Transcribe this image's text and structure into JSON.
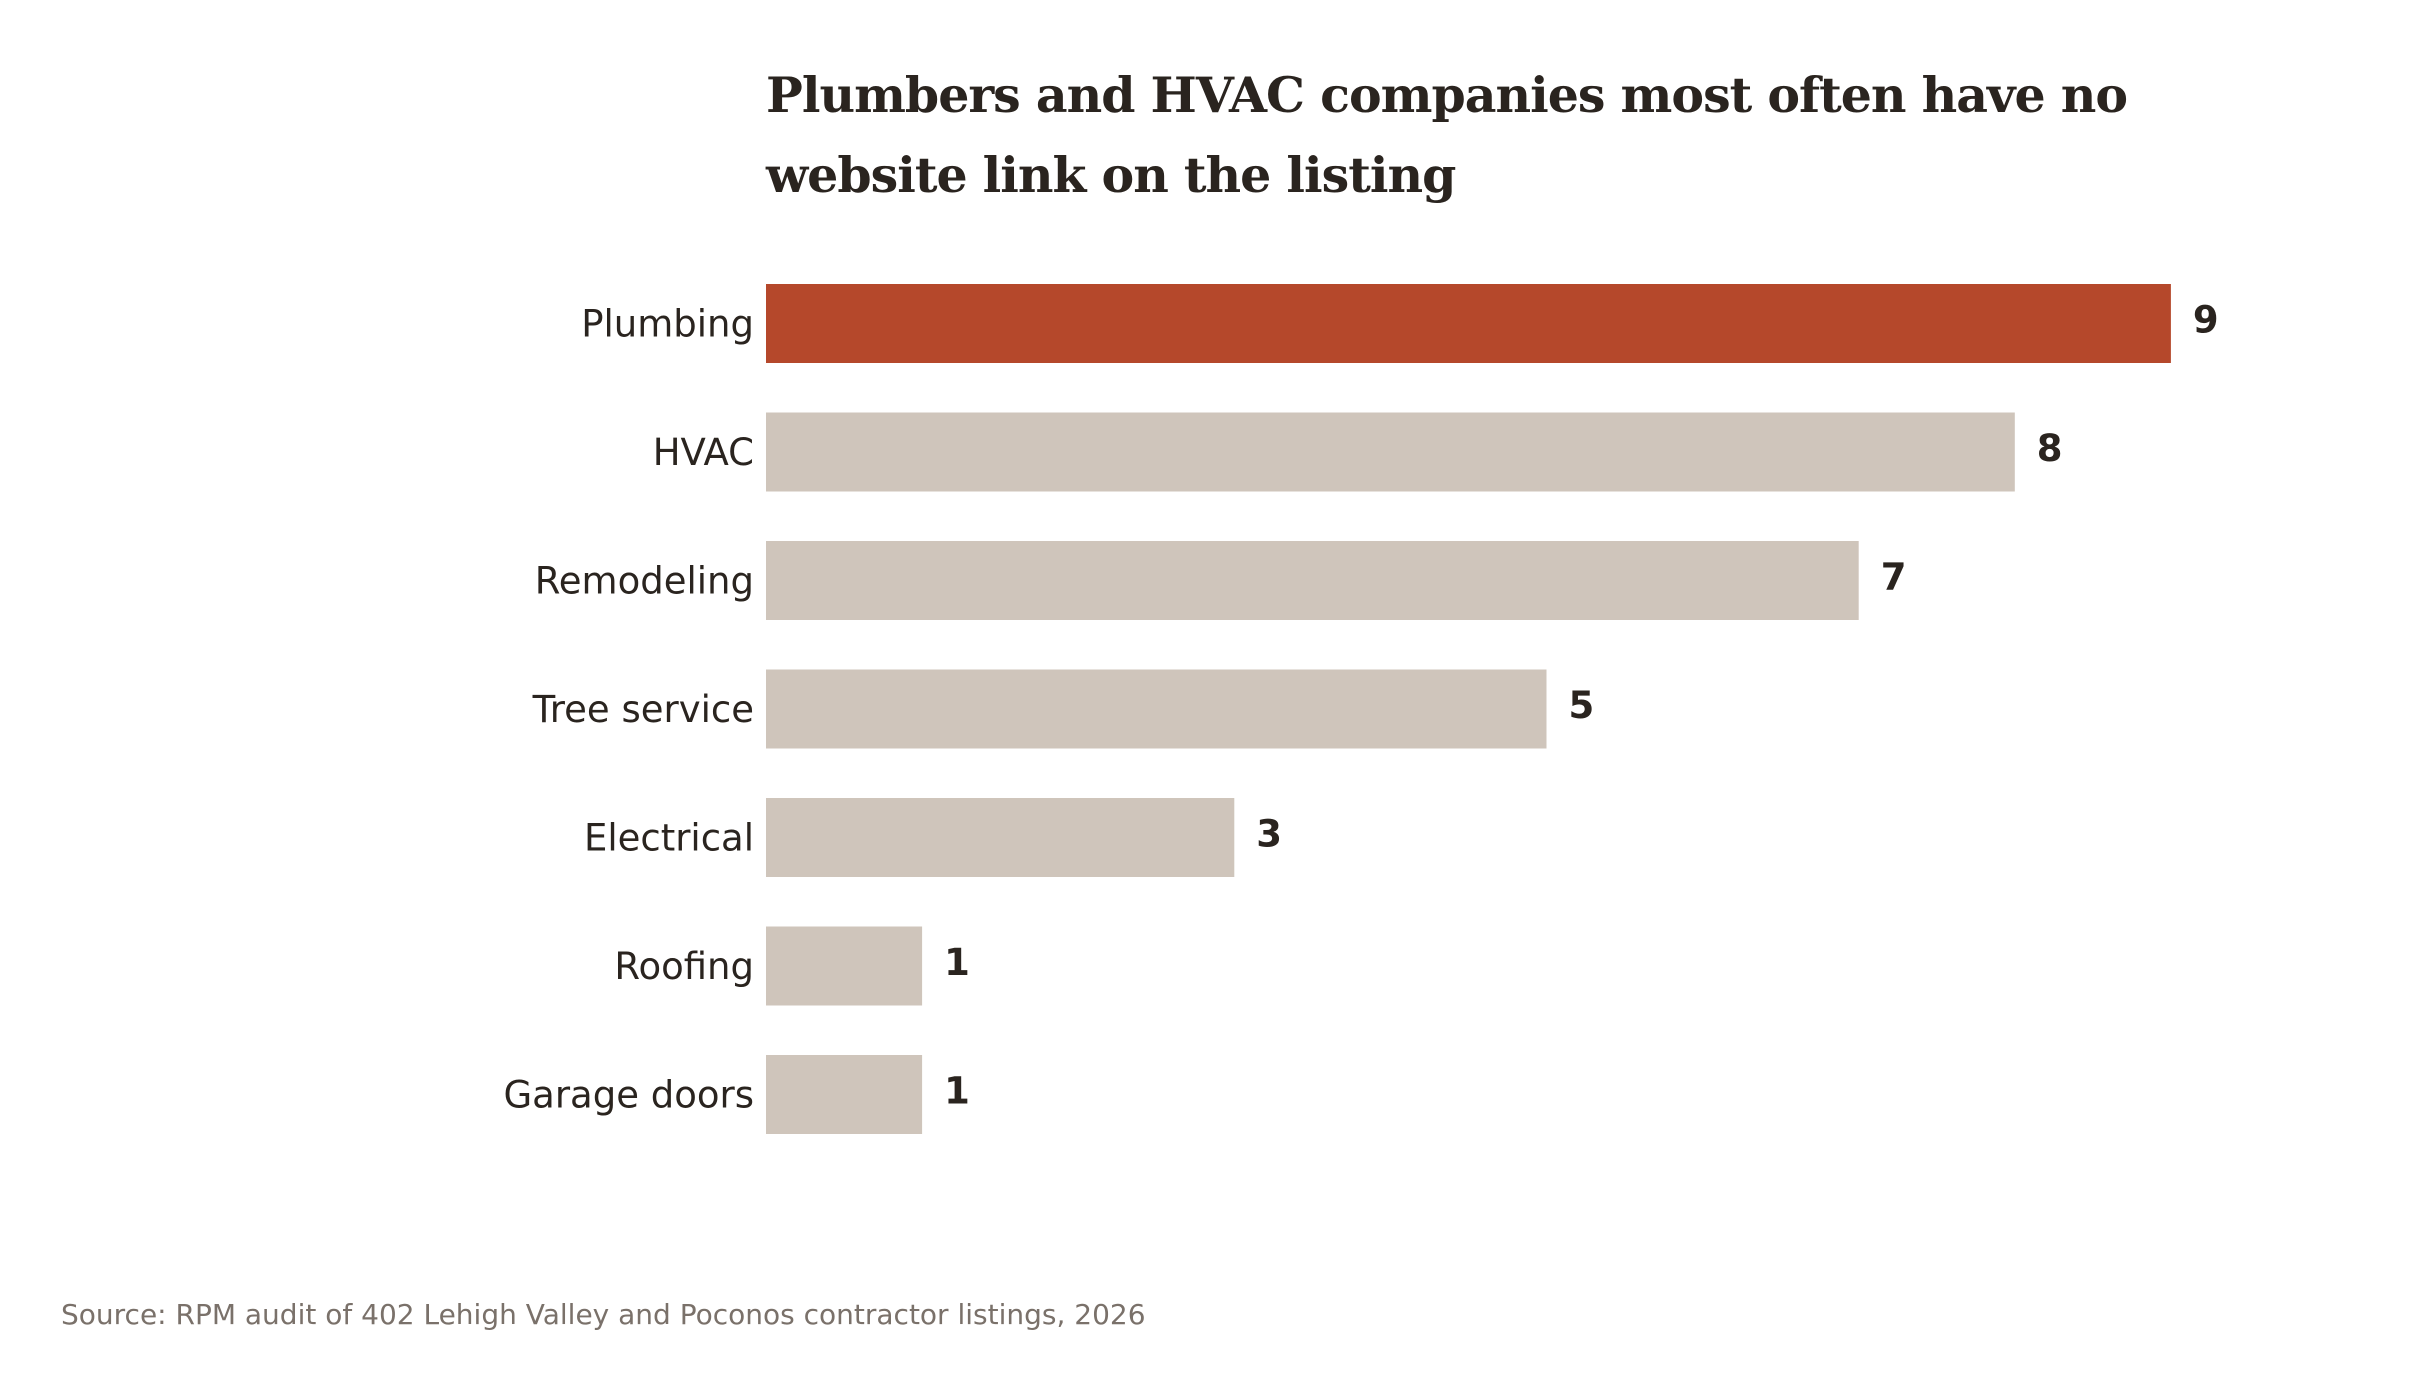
{
  "colors": {
    "highlight": "#b5482b",
    "bar": "#cfc5bb",
    "text": "#2a241f",
    "source_text": "#7a716a",
    "background": "#ffffff"
  },
  "chart_data": {
    "type": "bar",
    "orientation": "horizontal",
    "title_lines": [
      "Plumbers and HVAC companies most often have no",
      "website link on the listing"
    ],
    "categories": [
      "Plumbing",
      "HVAC",
      "Remodeling",
      "Tree service",
      "Electrical",
      "Roofing",
      "Garage doors"
    ],
    "values": [
      9,
      8,
      7,
      5,
      3,
      1,
      1
    ],
    "highlighted_category": "Plumbing",
    "xlim": [
      0,
      9
    ],
    "grid": false,
    "axes_visible": false,
    "data_labels": true
  },
  "source": "Source: RPM audit of 402 Lehigh Valley and Poconos contractor listings, 2026"
}
